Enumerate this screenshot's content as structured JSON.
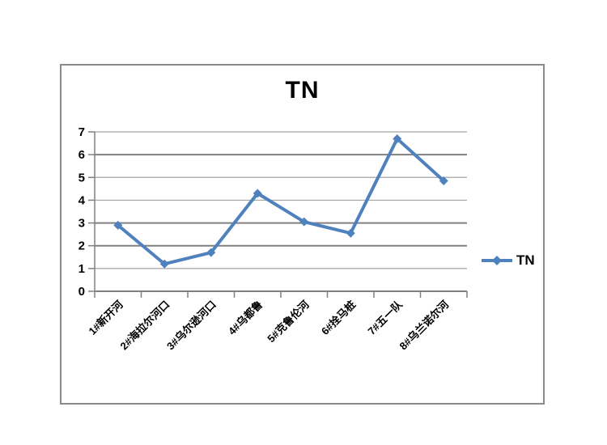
{
  "chart_data": {
    "type": "line",
    "title": "TN",
    "categories": [
      "1#新开河",
      "2#海拉尔河口",
      "3#乌尔逊河口",
      "4#乌都鲁",
      "5#克鲁伦河",
      "6#拴马桩",
      "7#五一队",
      "8#乌兰诺尔河"
    ],
    "series": [
      {
        "name": "TN",
        "values": [
          2.9,
          1.2,
          1.7,
          4.3,
          3.05,
          2.55,
          6.7,
          4.85
        ]
      }
    ],
    "xlabel": "",
    "ylabel": "",
    "ylim": [
      0,
      7
    ],
    "ytick_step": 1,
    "ytick_labels": [
      "0",
      "1",
      "2",
      "3",
      "4",
      "5",
      "6",
      "7"
    ],
    "grid": true,
    "emphasized_gridlines": [
      6,
      3,
      2
    ],
    "legend_position": "right",
    "line_color": "#4f81bd",
    "marker": "diamond",
    "axis_color": "#808080",
    "gridline_color": "#a3a3a3",
    "label_rotation_deg": -45
  }
}
